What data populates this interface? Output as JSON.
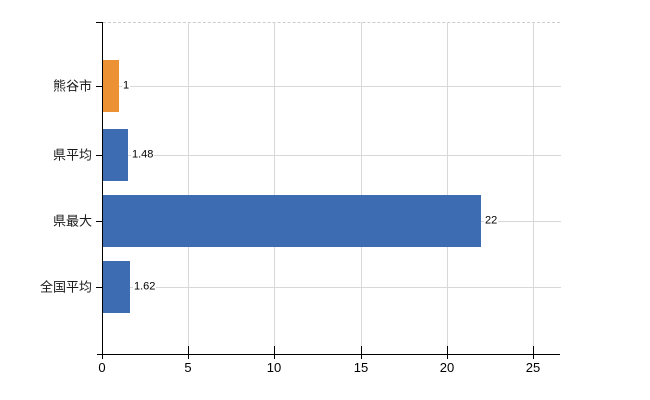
{
  "chart_data": {
    "type": "bar",
    "orientation": "horizontal",
    "title": "",
    "xlabel": "",
    "ylabel": "",
    "categories": [
      "熊谷市",
      "県平均",
      "県最大",
      "全国平均"
    ],
    "values": [
      1,
      1.48,
      22,
      1.62
    ],
    "value_labels": [
      "1",
      "1.48",
      "22",
      "1.62"
    ],
    "bar_colors": [
      "#ec9134",
      "#3e6cb2",
      "#3e6cb2",
      "#3e6cb2"
    ],
    "x_ticks": [
      0,
      5,
      10,
      15,
      20,
      25
    ],
    "xlim": [
      0,
      26.5
    ],
    "grid": true,
    "legend": false,
    "colors": {
      "axis": "#000000",
      "gridline": "#d8d8d8",
      "top_border": "#cccccc",
      "text": "#1a1a1a",
      "background": "#ffffff"
    }
  }
}
